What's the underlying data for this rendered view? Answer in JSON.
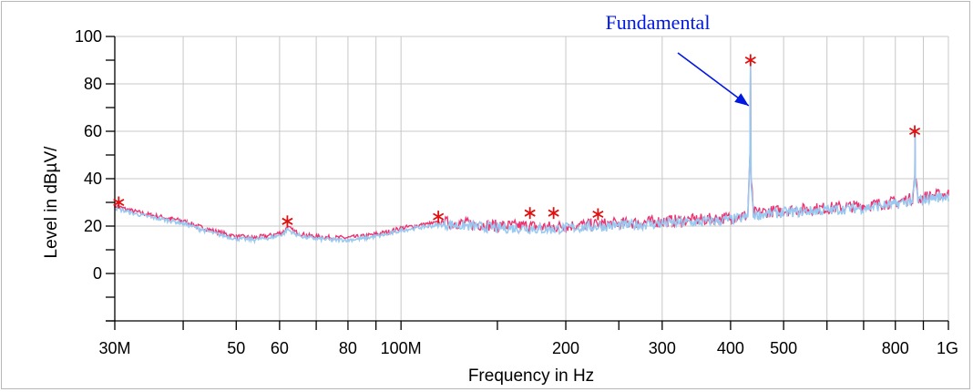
{
  "chart_data": {
    "type": "line",
    "xlabel": "Frequency in Hz",
    "ylabel": "Level in dBµV/",
    "xscale": "log",
    "xlim": [
      30000000,
      1000000000
    ],
    "ylim": [
      -20,
      100
    ],
    "grid": true,
    "x_tick_labels": [
      {
        "value": 30000000,
        "label": "30M"
      },
      {
        "value": 50000000,
        "label": "50"
      },
      {
        "value": 60000000,
        "label": "60"
      },
      {
        "value": 80000000,
        "label": "80"
      },
      {
        "value": 100000000,
        "label": "100M"
      },
      {
        "value": 200000000,
        "label": "200"
      },
      {
        "value": 300000000,
        "label": "300"
      },
      {
        "value": 400000000,
        "label": "400"
      },
      {
        "value": 500000000,
        "label": "500"
      },
      {
        "value": 800000000,
        "label": "800"
      },
      {
        "value": 1000000000,
        "label": "1G"
      }
    ],
    "x_minor_ticks": [
      40000000,
      70000000,
      90000000,
      600000000,
      700000000,
      900000000
    ],
    "y_ticks": [
      0,
      20,
      40,
      60,
      80,
      100
    ],
    "colors": {
      "trace_peak": "#ee3370",
      "trace_avg": "#99c8f0",
      "marker": "#e01010",
      "annotation": "#0018e0",
      "grid": "#c8c8c8"
    },
    "series": [
      {
        "x": [
          30000000,
          32000000,
          35000000,
          38000000,
          40000000,
          43000000,
          46000000,
          50000000,
          54000000,
          58000000,
          61000000,
          62000000,
          64000000,
          67000000,
          70000000,
          75000000,
          80000000,
          85000000,
          90000000,
          95000000,
          100000000,
          110000000,
          120000000,
          130000000,
          140000000,
          150000000,
          160000000,
          170000000,
          180000000,
          190000000,
          200000000,
          220000000,
          250000000,
          280000000,
          300000000,
          350000000,
          400000000,
          430000000,
          434000000,
          435000000,
          436000000,
          440000000,
          470000000,
          500000000,
          550000000,
          600000000,
          700000000,
          800000000,
          860000000,
          868000000,
          869000000,
          870000000,
          880000000,
          920000000,
          1000000000
        ],
        "y": [
          28,
          26,
          24,
          22.5,
          21.5,
          19,
          17,
          15,
          14.5,
          15.5,
          17,
          19,
          17,
          15.5,
          15,
          14.5,
          14.5,
          15,
          16,
          17,
          18.5,
          20,
          21,
          20.5,
          20,
          19.5,
          19.5,
          19.5,
          19,
          19,
          19.5,
          20,
          20.5,
          21,
          21.5,
          22,
          23,
          24,
          50,
          90,
          40,
          25,
          25.5,
          26,
          26.5,
          27,
          28,
          29.5,
          31,
          40,
          60,
          40,
          31,
          32,
          33
        ]
      }
    ],
    "markers": {
      "x": [
        30500000,
        62000000,
        117000000,
        172000000,
        190000000,
        229000000,
        435000000,
        868000000
      ],
      "y": [
        30,
        22,
        24,
        25.5,
        25.5,
        25,
        90,
        60
      ]
    },
    "annotations": [
      {
        "text": "Fundamental",
        "x": 435000000,
        "y": 70
      }
    ]
  }
}
